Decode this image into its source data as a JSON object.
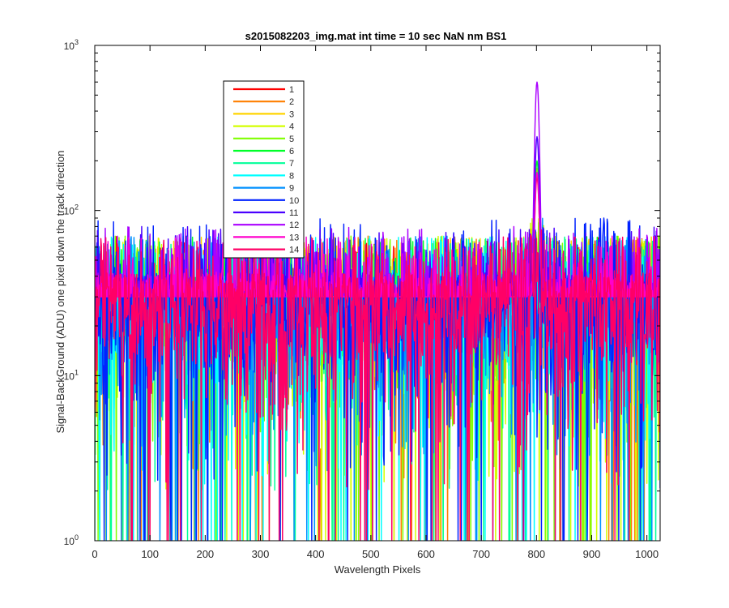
{
  "chart_data": {
    "type": "line",
    "title": "s2015082203_img.mat int time = 10 sec  NaN nm BS1",
    "xlabel": "Wavelength Pixels",
    "ylabel": "Signal-BackGround (ADU) one pixel down the track direction",
    "x_scale": "linear",
    "y_scale": "log",
    "xlim": [
      0,
      1024
    ],
    "ylim": [
      1,
      1000
    ],
    "x_ticks": [
      0,
      100,
      200,
      300,
      400,
      500,
      600,
      700,
      800,
      900,
      1000
    ],
    "x_tick_labels": [
      "0",
      "100",
      "200",
      "300",
      "400",
      "500",
      "600",
      "700",
      "800",
      "900",
      "1000"
    ],
    "y_ticks": [
      1,
      10,
      100,
      1000
    ],
    "y_tick_labels": [
      {
        "base": "10",
        "exp": "0"
      },
      {
        "base": "10",
        "exp": "1"
      },
      {
        "base": "10",
        "exp": "2"
      },
      {
        "base": "10",
        "exp": "3"
      }
    ],
    "grid": false,
    "legend_position": "upper-left",
    "peak_feature": {
      "center_x": 801,
      "values_by_series": [
        {
          "series": "12",
          "peak_y": 600
        },
        {
          "series": "11",
          "peak_y": 280
        },
        {
          "series": "6",
          "peak_y": 200
        },
        {
          "series": "3",
          "peak_y": 180
        },
        {
          "series": "13",
          "peak_y": 170
        },
        {
          "series": "1",
          "peak_y": 160
        }
      ]
    },
    "series": [
      {
        "name": "1",
        "color": "#ff0000",
        "baseline_mean": 20,
        "max_noise": 70
      },
      {
        "name": "2",
        "color": "#ff7f00",
        "baseline_mean": 20,
        "max_noise": 70
      },
      {
        "name": "3",
        "color": "#ffd400",
        "baseline_mean": 20,
        "max_noise": 70
      },
      {
        "name": "4",
        "color": "#d4ff00",
        "baseline_mean": 20,
        "max_noise": 70
      },
      {
        "name": "5",
        "color": "#7fff00",
        "baseline_mean": 20,
        "max_noise": 70
      },
      {
        "name": "6",
        "color": "#00ff2a",
        "baseline_mean": 20,
        "max_noise": 70
      },
      {
        "name": "7",
        "color": "#00ff99",
        "baseline_mean": 20,
        "max_noise": 70
      },
      {
        "name": "8",
        "color": "#00ffff",
        "baseline_mean": 20,
        "max_noise": 70
      },
      {
        "name": "9",
        "color": "#0091ff",
        "baseline_mean": 20,
        "max_noise": 70
      },
      {
        "name": "10",
        "color": "#0022ff",
        "baseline_mean": 20,
        "max_noise": 90
      },
      {
        "name": "11",
        "color": "#4a00ff",
        "baseline_mean": 20,
        "max_noise": 80
      },
      {
        "name": "12",
        "color": "#aa00ff",
        "baseline_mean": 20,
        "max_noise": 80
      },
      {
        "name": "13",
        "color": "#ff00cc",
        "baseline_mean": 20,
        "max_noise": 70
      },
      {
        "name": "14",
        "color": "#ff0066",
        "baseline_mean": 20,
        "max_noise": 70
      }
    ]
  }
}
